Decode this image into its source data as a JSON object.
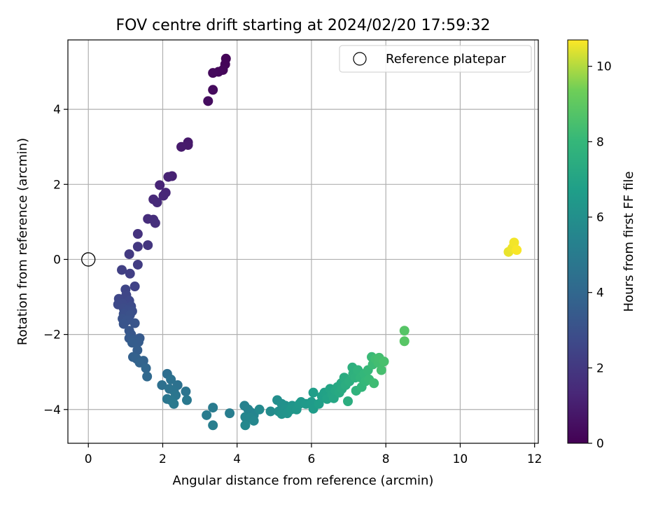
{
  "chart_data": {
    "type": "scatter",
    "title": "FOV centre drift starting at 2024/02/20 17:59:32",
    "xlabel": "Angular distance from reference (arcmin)",
    "ylabel": "Rotation from reference (arcmin)",
    "xlim": [
      -0.55,
      12.1
    ],
    "ylim": [
      -4.9,
      5.85
    ],
    "xticks": [
      0,
      2,
      4,
      6,
      8,
      10,
      12
    ],
    "yticks": [
      -4,
      -2,
      0,
      2,
      4
    ],
    "grid": true,
    "legend": {
      "placement": "upper right",
      "entries": [
        "Reference platepar"
      ]
    },
    "reference_point": {
      "x": 0,
      "y": 0,
      "label": "Reference platepar"
    },
    "colorbar": {
      "label": "Hours from first FF file",
      "colormap": "viridis",
      "range": [
        0,
        10.7
      ],
      "ticks": [
        0,
        2,
        4,
        6,
        8,
        10
      ]
    },
    "points": [
      {
        "x": 3.7,
        "y": 5.35,
        "c": 0.1
      },
      {
        "x": 3.68,
        "y": 5.2,
        "c": 0.15
      },
      {
        "x": 3.62,
        "y": 5.05,
        "c": 0.2
      },
      {
        "x": 3.5,
        "y": 5.0,
        "c": 0.25
      },
      {
        "x": 3.35,
        "y": 4.97,
        "c": 0.3
      },
      {
        "x": 3.35,
        "y": 4.52,
        "c": 0.35
      },
      {
        "x": 3.22,
        "y": 4.22,
        "c": 0.4
      },
      {
        "x": 2.68,
        "y": 3.12,
        "c": 0.8
      },
      {
        "x": 2.68,
        "y": 3.05,
        "c": 0.85
      },
      {
        "x": 2.5,
        "y": 3.0,
        "c": 0.9
      },
      {
        "x": 2.25,
        "y": 2.22,
        "c": 1.1
      },
      {
        "x": 2.15,
        "y": 2.2,
        "c": 1.15
      },
      {
        "x": 1.92,
        "y": 1.98,
        "c": 1.25
      },
      {
        "x": 2.08,
        "y": 1.78,
        "c": 1.3
      },
      {
        "x": 2.02,
        "y": 1.7,
        "c": 1.35
      },
      {
        "x": 1.75,
        "y": 1.6,
        "c": 1.4
      },
      {
        "x": 1.85,
        "y": 1.52,
        "c": 1.45
      },
      {
        "x": 1.6,
        "y": 1.08,
        "c": 1.55
      },
      {
        "x": 1.75,
        "y": 1.06,
        "c": 1.6
      },
      {
        "x": 1.8,
        "y": 0.97,
        "c": 1.65
      },
      {
        "x": 1.33,
        "y": 0.68,
        "c": 1.8
      },
      {
        "x": 1.6,
        "y": 0.38,
        "c": 1.9
      },
      {
        "x": 1.33,
        "y": 0.34,
        "c": 1.95
      },
      {
        "x": 1.1,
        "y": 0.14,
        "c": 2.05
      },
      {
        "x": 1.33,
        "y": -0.14,
        "c": 2.15
      },
      {
        "x": 1.12,
        "y": -0.38,
        "c": 2.25
      },
      {
        "x": 0.9,
        "y": -0.28,
        "c": 2.3
      },
      {
        "x": 1.25,
        "y": -0.72,
        "c": 2.4
      },
      {
        "x": 1.0,
        "y": -0.8,
        "c": 2.5
      },
      {
        "x": 1.02,
        "y": -0.95,
        "c": 2.55
      },
      {
        "x": 0.82,
        "y": -1.05,
        "c": 2.6
      },
      {
        "x": 1.1,
        "y": -1.1,
        "c": 2.65
      },
      {
        "x": 0.92,
        "y": -1.18,
        "c": 2.7
      },
      {
        "x": 0.8,
        "y": -1.2,
        "c": 2.72
      },
      {
        "x": 1.15,
        "y": -1.25,
        "c": 2.75
      },
      {
        "x": 0.95,
        "y": -1.3,
        "c": 2.8
      },
      {
        "x": 1.05,
        "y": -1.35,
        "c": 2.85
      },
      {
        "x": 1.18,
        "y": -1.38,
        "c": 2.9
      },
      {
        "x": 0.95,
        "y": -1.45,
        "c": 2.95
      },
      {
        "x": 1.12,
        "y": -1.48,
        "c": 3.0
      },
      {
        "x": 0.92,
        "y": -1.58,
        "c": 3.05
      },
      {
        "x": 1.05,
        "y": -1.62,
        "c": 3.1
      },
      {
        "x": 0.95,
        "y": -1.72,
        "c": 3.15
      },
      {
        "x": 1.25,
        "y": -1.7,
        "c": 3.2
      },
      {
        "x": 1.1,
        "y": -1.9,
        "c": 3.25
      },
      {
        "x": 1.15,
        "y": -2.0,
        "c": 3.3
      },
      {
        "x": 1.1,
        "y": -2.1,
        "c": 3.35
      },
      {
        "x": 1.38,
        "y": -2.1,
        "c": 3.4
      },
      {
        "x": 1.22,
        "y": -2.15,
        "c": 3.45
      },
      {
        "x": 1.35,
        "y": -2.2,
        "c": 3.5
      },
      {
        "x": 1.18,
        "y": -2.22,
        "c": 3.55
      },
      {
        "x": 1.32,
        "y": -2.42,
        "c": 3.6
      },
      {
        "x": 1.2,
        "y": -2.6,
        "c": 3.7
      },
      {
        "x": 1.3,
        "y": -2.65,
        "c": 3.75
      },
      {
        "x": 1.48,
        "y": -2.7,
        "c": 3.8
      },
      {
        "x": 1.38,
        "y": -2.75,
        "c": 3.85
      },
      {
        "x": 1.55,
        "y": -2.9,
        "c": 3.95
      },
      {
        "x": 1.58,
        "y": -3.12,
        "c": 4.05
      },
      {
        "x": 2.12,
        "y": -3.05,
        "c": 4.3
      },
      {
        "x": 1.98,
        "y": -3.35,
        "c": 4.4
      },
      {
        "x": 2.22,
        "y": -3.2,
        "c": 4.45
      },
      {
        "x": 2.4,
        "y": -3.35,
        "c": 4.5
      },
      {
        "x": 2.18,
        "y": -3.45,
        "c": 4.55
      },
      {
        "x": 2.3,
        "y": -3.5,
        "c": 4.6
      },
      {
        "x": 2.62,
        "y": -3.52,
        "c": 4.65
      },
      {
        "x": 2.35,
        "y": -3.62,
        "c": 4.7
      },
      {
        "x": 2.12,
        "y": -3.72,
        "c": 4.75
      },
      {
        "x": 2.22,
        "y": -3.75,
        "c": 4.8
      },
      {
        "x": 2.65,
        "y": -3.75,
        "c": 4.85
      },
      {
        "x": 2.3,
        "y": -3.85,
        "c": 4.9
      },
      {
        "x": 3.35,
        "y": -3.95,
        "c": 5.0
      },
      {
        "x": 3.8,
        "y": -4.1,
        "c": 5.1
      },
      {
        "x": 3.18,
        "y": -4.15,
        "c": 5.05
      },
      {
        "x": 3.35,
        "y": -4.42,
        "c": 5.15
      },
      {
        "x": 4.2,
        "y": -3.9,
        "c": 5.3
      },
      {
        "x": 4.3,
        "y": -4.0,
        "c": 5.35
      },
      {
        "x": 4.38,
        "y": -4.08,
        "c": 5.4
      },
      {
        "x": 4.45,
        "y": -4.15,
        "c": 5.45
      },
      {
        "x": 4.22,
        "y": -4.2,
        "c": 5.5
      },
      {
        "x": 4.35,
        "y": -4.22,
        "c": 5.55
      },
      {
        "x": 4.45,
        "y": -4.3,
        "c": 5.6
      },
      {
        "x": 4.22,
        "y": -4.42,
        "c": 5.65
      },
      {
        "x": 4.6,
        "y": -4.0,
        "c": 5.7
      },
      {
        "x": 4.9,
        "y": -4.05,
        "c": 5.8
      },
      {
        "x": 5.08,
        "y": -3.75,
        "c": 5.9
      },
      {
        "x": 5.12,
        "y": -4.05,
        "c": 5.95
      },
      {
        "x": 5.2,
        "y": -3.85,
        "c": 6.0
      },
      {
        "x": 5.3,
        "y": -3.9,
        "c": 6.05
      },
      {
        "x": 5.3,
        "y": -4.0,
        "c": 6.1
      },
      {
        "x": 5.2,
        "y": -4.12,
        "c": 6.15
      },
      {
        "x": 5.35,
        "y": -4.1,
        "c": 6.2
      },
      {
        "x": 5.48,
        "y": -3.9,
        "c": 6.25
      },
      {
        "x": 5.45,
        "y": -4.0,
        "c": 6.3
      },
      {
        "x": 5.6,
        "y": -4.0,
        "c": 6.35
      },
      {
        "x": 5.68,
        "y": -3.85,
        "c": 6.4
      },
      {
        "x": 5.72,
        "y": -3.8,
        "c": 6.45
      },
      {
        "x": 5.85,
        "y": -3.85,
        "c": 6.5
      },
      {
        "x": 6.0,
        "y": -3.8,
        "c": 6.55
      },
      {
        "x": 6.05,
        "y": -3.98,
        "c": 6.6
      },
      {
        "x": 6.05,
        "y": -3.55,
        "c": 6.7
      },
      {
        "x": 6.2,
        "y": -3.85,
        "c": 6.75
      },
      {
        "x": 6.28,
        "y": -3.65,
        "c": 6.8
      },
      {
        "x": 6.35,
        "y": -3.55,
        "c": 6.85
      },
      {
        "x": 6.42,
        "y": -3.6,
        "c": 6.9
      },
      {
        "x": 6.42,
        "y": -3.72,
        "c": 6.95
      },
      {
        "x": 6.5,
        "y": -3.45,
        "c": 7.0
      },
      {
        "x": 6.55,
        "y": -3.6,
        "c": 7.05
      },
      {
        "x": 6.6,
        "y": -3.7,
        "c": 7.1
      },
      {
        "x": 6.65,
        "y": -3.5,
        "c": 7.15
      },
      {
        "x": 6.7,
        "y": -3.4,
        "c": 7.2
      },
      {
        "x": 6.75,
        "y": -3.55,
        "c": 7.25
      },
      {
        "x": 6.8,
        "y": -3.3,
        "c": 7.3
      },
      {
        "x": 6.82,
        "y": -3.45,
        "c": 7.35
      },
      {
        "x": 6.88,
        "y": -3.15,
        "c": 7.4
      },
      {
        "x": 6.92,
        "y": -3.35,
        "c": 7.45
      },
      {
        "x": 6.98,
        "y": -3.78,
        "c": 7.5
      },
      {
        "x": 7.02,
        "y": -3.25,
        "c": 7.55
      },
      {
        "x": 7.1,
        "y": -2.88,
        "c": 7.6
      },
      {
        "x": 7.12,
        "y": -3.05,
        "c": 7.65
      },
      {
        "x": 7.18,
        "y": -3.15,
        "c": 7.7
      },
      {
        "x": 7.2,
        "y": -3.5,
        "c": 7.75
      },
      {
        "x": 7.25,
        "y": -2.95,
        "c": 7.8
      },
      {
        "x": 7.32,
        "y": -3.15,
        "c": 7.85
      },
      {
        "x": 7.35,
        "y": -3.4,
        "c": 7.9
      },
      {
        "x": 7.42,
        "y": -3.05,
        "c": 7.95
      },
      {
        "x": 7.45,
        "y": -3.25,
        "c": 8.0
      },
      {
        "x": 7.52,
        "y": -2.95,
        "c": 8.05
      },
      {
        "x": 7.55,
        "y": -3.2,
        "c": 8.1
      },
      {
        "x": 7.62,
        "y": -2.6,
        "c": 8.15
      },
      {
        "x": 7.65,
        "y": -2.8,
        "c": 8.2
      },
      {
        "x": 7.68,
        "y": -3.3,
        "c": 8.25
      },
      {
        "x": 7.72,
        "y": -2.65,
        "c": 8.3
      },
      {
        "x": 7.8,
        "y": -2.75,
        "c": 8.35
      },
      {
        "x": 7.82,
        "y": -2.62,
        "c": 8.4
      },
      {
        "x": 7.88,
        "y": -2.95,
        "c": 8.45
      },
      {
        "x": 7.95,
        "y": -2.72,
        "c": 8.5
      },
      {
        "x": 8.5,
        "y": -1.9,
        "c": 8.8
      },
      {
        "x": 8.5,
        "y": -2.18,
        "c": 8.85
      },
      {
        "x": 11.3,
        "y": 0.2,
        "c": 10.5
      },
      {
        "x": 11.4,
        "y": 0.3,
        "c": 10.55
      },
      {
        "x": 11.45,
        "y": 0.45,
        "c": 10.6
      },
      {
        "x": 11.52,
        "y": 0.25,
        "c": 10.65
      }
    ]
  }
}
